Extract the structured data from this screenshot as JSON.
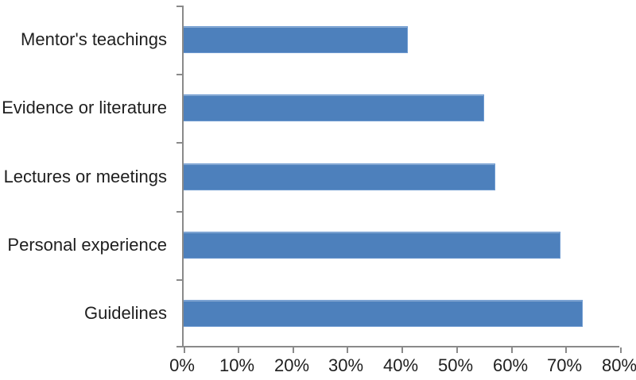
{
  "chart_data": {
    "type": "bar",
    "orientation": "horizontal",
    "title": "",
    "xlabel": "",
    "ylabel": "",
    "categories": [
      "Mentor's teachings",
      "Evidence or literature",
      "Lectures or meetings",
      "Personal experience",
      "Guidelines"
    ],
    "values": [
      41,
      55,
      57,
      69,
      73
    ],
    "value_unit": "%",
    "xlim": [
      0,
      80
    ],
    "x_tick_values": [
      0,
      10,
      20,
      30,
      40,
      50,
      60,
      70,
      80
    ],
    "x_tick_labels": [
      "0%",
      "10%",
      "20%",
      "30%",
      "40%",
      "50%",
      "60%",
      "70%",
      "80%"
    ],
    "grid": false,
    "legend": "none",
    "bar_color": "#4d80bc",
    "bar_border_color": "#6f9bd1",
    "axis_color": "#8a8a8a",
    "text_color": "#1f1f1f",
    "background_color": "#ffffff"
  }
}
